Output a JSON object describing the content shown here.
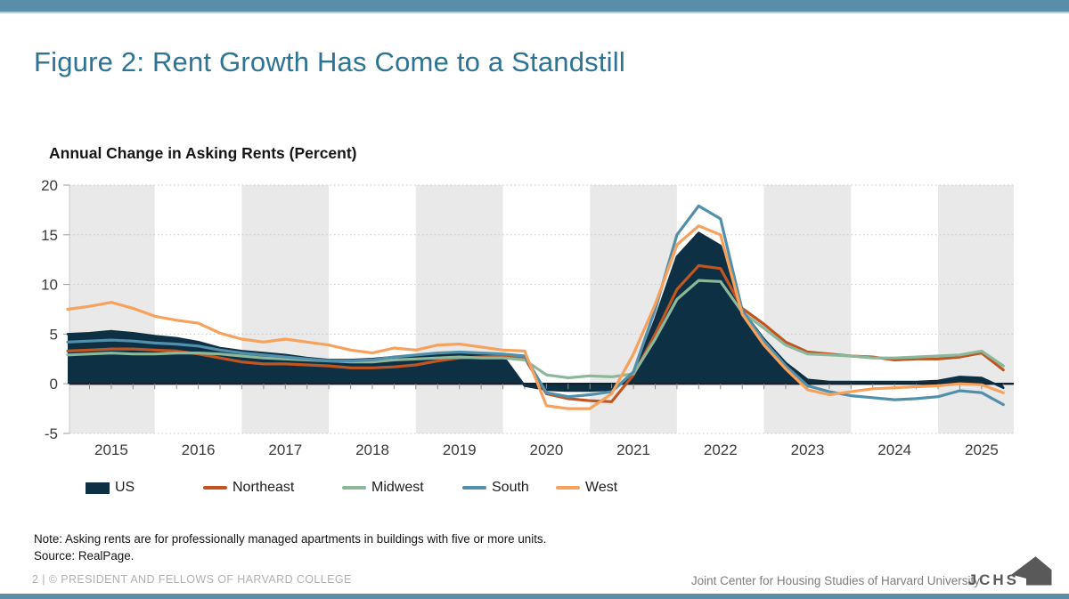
{
  "theme": {
    "accent_bar": "#5a8ea8",
    "accent_bar_edge": "#b6cbd6",
    "title_color": "#2d7394"
  },
  "header": {
    "title": "Figure 2: Rent Growth Has Come to a Standstill"
  },
  "chart_data": {
    "type": "line",
    "title": "Annual Change in Asking Rents (Percent)",
    "xlabel": "",
    "ylabel": "Annual Change in Asking Rents (Percent)",
    "ylim": [
      -5,
      20
    ],
    "x_domain": [
      2014.52,
      2025.37
    ],
    "yticks": [
      20,
      15,
      10,
      5,
      0,
      -5
    ],
    "xticks": [
      2015,
      2016,
      2017,
      2018,
      2019,
      2020,
      2021,
      2022,
      2023,
      2024,
      2025
    ],
    "band_years": [
      2015,
      2017,
      2019,
      2021,
      2023,
      2025
    ],
    "band_color": "#e9e9e9",
    "grid_color": "#c8c8c8",
    "zero_line_color": "#15222e",
    "tick_color": "#8c8c8c",
    "legend_position": "bottom",
    "grid": "dotted horizontal",
    "x": [
      2014.5,
      2014.75,
      2015,
      2015.25,
      2015.5,
      2015.75,
      2016,
      2016.25,
      2016.5,
      2016.75,
      2017,
      2017.25,
      2017.5,
      2017.75,
      2018,
      2018.25,
      2018.5,
      2018.75,
      2019,
      2019.25,
      2019.5,
      2019.75,
      2020,
      2020.25,
      2020.5,
      2020.75,
      2021,
      2021.25,
      2021.5,
      2021.75,
      2022,
      2022.25,
      2022.5,
      2022.75,
      2023,
      2023.25,
      2023.5,
      2023.75,
      2024,
      2024.25,
      2024.5,
      2024.75,
      2025,
      2025.25
    ],
    "series": [
      {
        "name": "US",
        "kind": "area",
        "color": "#0e3044",
        "values": [
          5.0,
          5.1,
          5.3,
          5.1,
          4.8,
          4.6,
          4.2,
          3.6,
          3.3,
          3.1,
          2.9,
          2.6,
          2.4,
          2.4,
          2.5,
          2.7,
          2.8,
          2.9,
          3.0,
          2.9,
          2.8,
          -0.2,
          -0.6,
          -0.7,
          -0.7,
          -0.6,
          0.8,
          6.5,
          12.8,
          15.2,
          13.9,
          7.4,
          4.5,
          2.1,
          0.4,
          0.2,
          0.2,
          0.2,
          0.2,
          0.2,
          0.3,
          0.7,
          0.6,
          -0.4
        ]
      },
      {
        "name": "Northeast",
        "kind": "line",
        "color": "#c05522",
        "values": [
          3.3,
          3.4,
          3.5,
          3.5,
          3.4,
          3.3,
          3.0,
          2.6,
          2.2,
          2.0,
          2.0,
          1.9,
          1.8,
          1.6,
          1.6,
          1.7,
          1.9,
          2.3,
          2.6,
          2.7,
          2.8,
          2.6,
          -1.0,
          -1.5,
          -1.7,
          -1.8,
          0.9,
          5.0,
          9.5,
          11.9,
          11.6,
          7.6,
          6.0,
          4.2,
          3.2,
          3.0,
          2.8,
          2.7,
          2.4,
          2.5,
          2.5,
          2.7,
          3.1,
          1.4
        ]
      },
      {
        "name": "Midwest",
        "kind": "line",
        "color": "#8bb79a",
        "values": [
          2.9,
          3.0,
          3.1,
          3.0,
          3.0,
          3.1,
          3.1,
          3.0,
          2.8,
          2.6,
          2.5,
          2.4,
          2.3,
          2.2,
          2.2,
          2.4,
          2.5,
          2.6,
          2.7,
          2.6,
          2.6,
          2.4,
          0.9,
          0.6,
          0.8,
          0.7,
          1.0,
          4.5,
          8.5,
          10.4,
          10.3,
          7.2,
          5.6,
          3.9,
          3.0,
          2.9,
          2.8,
          2.6,
          2.6,
          2.7,
          2.8,
          2.9,
          3.3,
          1.8
        ]
      },
      {
        "name": "South",
        "kind": "line",
        "color": "#528fab",
        "values": [
          4.2,
          4.3,
          4.4,
          4.3,
          4.1,
          4.0,
          3.8,
          3.4,
          3.1,
          2.9,
          2.7,
          2.5,
          2.3,
          2.3,
          2.4,
          2.7,
          2.9,
          3.1,
          3.2,
          3.1,
          3.0,
          2.8,
          -0.9,
          -1.3,
          -1.1,
          -0.8,
          1.2,
          7.5,
          15.0,
          17.9,
          16.6,
          7.4,
          4.3,
          1.8,
          -0.2,
          -0.8,
          -1.2,
          -1.4,
          -1.6,
          -1.5,
          -1.3,
          -0.7,
          -0.9,
          -2.1
        ]
      },
      {
        "name": "West",
        "kind": "line",
        "color": "#f6a15c",
        "values": [
          7.5,
          7.8,
          8.2,
          7.6,
          6.8,
          6.4,
          6.1,
          5.1,
          4.5,
          4.2,
          4.5,
          4.2,
          3.9,
          3.4,
          3.1,
          3.6,
          3.4,
          3.9,
          4.0,
          3.7,
          3.4,
          3.3,
          -2.2,
          -2.5,
          -2.5,
          -1.0,
          3.0,
          8.0,
          14.0,
          15.9,
          15.0,
          7.0,
          3.9,
          1.5,
          -0.6,
          -1.1,
          -0.8,
          -0.5,
          -0.4,
          -0.3,
          -0.2,
          0.0,
          -0.1,
          -0.9
        ]
      }
    ]
  },
  "notes": {
    "note": "Note: Asking rents are for professionally managed apartments in buildings with five or more units.",
    "source": "Source: RealPage."
  },
  "footer": {
    "left": "2 | © PRESIDENT AND FELLOWS OF HARVARD COLLEGE",
    "right": "Joint Center for Housing Studies of Harvard University",
    "logo_text": "JCHS"
  }
}
